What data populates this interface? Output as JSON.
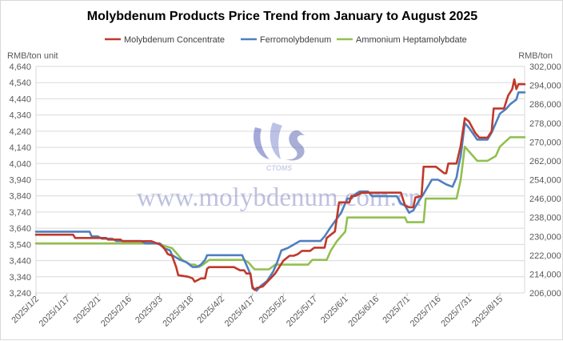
{
  "chart_data": {
    "type": "line",
    "title": "Molybdenum Products Price Trend from January to August 2025",
    "left_unit": "RMB/ton unit",
    "right_unit": "RMB/ton",
    "x_tick_labels": [
      "2025/1/2",
      "2025/1/17",
      "2025/2/1",
      "2025/2/16",
      "2025/3/3",
      "2025/3/18",
      "2025/4/2",
      "2025/4/17",
      "2025/5/2",
      "2025/5/17",
      "2025/6/1",
      "2025/6/16",
      "2025/7/1",
      "2025/7/16",
      "2025/7/31",
      "2025/8/15"
    ],
    "x_range": [
      "2025/1/2",
      "2025/8/27"
    ],
    "left_axis": {
      "ticks": [
        3240,
        3340,
        3440,
        3540,
        3640,
        3740,
        3840,
        3940,
        4040,
        4140,
        4240,
        4340,
        4440,
        4540,
        4640
      ],
      "tick_labels": [
        "3,240",
        "3,340",
        "3,440",
        "3,540",
        "3,640",
        "3,740",
        "3,840",
        "3,940",
        "4,040",
        "4,140",
        "4,240",
        "4,340",
        "4,440",
        "4,540",
        "4,640"
      ],
      "range": [
        3240,
        4640
      ]
    },
    "right_axis": {
      "ticks": [
        206000,
        214000,
        222000,
        230000,
        238000,
        246000,
        254000,
        262000,
        270000,
        278000,
        286000,
        294000,
        302000
      ],
      "tick_labels": [
        "206,000",
        "214,000",
        "222,000",
        "230,000",
        "238,000",
        "246,000",
        "254,000",
        "262,000",
        "270,000",
        "278,000",
        "286,000",
        "294,000",
        "302,000"
      ],
      "range": [
        206000,
        302000
      ]
    },
    "grid": "horizontal",
    "legend_position": "top",
    "series": [
      {
        "name": "Molybdenum Concentrate",
        "axis": "left",
        "color": "#c0392b",
        "points": [
          [
            "2025/1/2",
            3600
          ],
          [
            "2025/1/20",
            3600
          ],
          [
            "2025/1/21",
            3580
          ],
          [
            "2025/2/5",
            3580
          ],
          [
            "2025/2/6",
            3570
          ],
          [
            "2025/2/12",
            3570
          ],
          [
            "2025/2/13",
            3560
          ],
          [
            "2025/2/27",
            3560
          ],
          [
            "2025/3/3",
            3540
          ],
          [
            "2025/3/5",
            3520
          ],
          [
            "2025/3/7",
            3480
          ],
          [
            "2025/3/9",
            3470
          ],
          [
            "2025/3/11",
            3400
          ],
          [
            "2025/3/12",
            3350
          ],
          [
            "2025/3/17",
            3340
          ],
          [
            "2025/3/19",
            3330
          ],
          [
            "2025/3/20",
            3310
          ],
          [
            "2025/3/23",
            3330
          ],
          [
            "2025/3/25",
            3330
          ],
          [
            "2025/3/26",
            3390
          ],
          [
            "2025/3/27",
            3400
          ],
          [
            "2025/4/8",
            3400
          ],
          [
            "2025/4/11",
            3380
          ],
          [
            "2025/4/13",
            3380
          ],
          [
            "2025/4/14",
            3360
          ],
          [
            "2025/4/16",
            3360
          ],
          [
            "2025/4/17",
            3280
          ],
          [
            "2025/4/18",
            3260
          ],
          [
            "2025/4/19",
            3270
          ],
          [
            "2025/4/22",
            3280
          ],
          [
            "2025/4/25",
            3320
          ],
          [
            "2025/4/28",
            3360
          ],
          [
            "2025/4/30",
            3400
          ],
          [
            "2025/5/2",
            3440
          ],
          [
            "2025/5/5",
            3470
          ],
          [
            "2025/5/7",
            3470
          ],
          [
            "2025/5/9",
            3480
          ],
          [
            "2025/5/11",
            3500
          ],
          [
            "2025/5/15",
            3500
          ],
          [
            "2025/5/17",
            3520
          ],
          [
            "2025/5/22",
            3520
          ],
          [
            "2025/5/23",
            3580
          ],
          [
            "2025/5/25",
            3600
          ],
          [
            "2025/5/27",
            3620
          ],
          [
            "2025/5/29",
            3800
          ],
          [
            "2025/6/3",
            3800
          ],
          [
            "2025/6/4",
            3840
          ],
          [
            "2025/6/6",
            3840
          ],
          [
            "2025/6/9",
            3860
          ],
          [
            "2025/6/28",
            3860
          ],
          [
            "2025/6/30",
            3780
          ],
          [
            "2025/7/2",
            3770
          ],
          [
            "2025/7/4",
            3770
          ],
          [
            "2025/7/5",
            3830
          ],
          [
            "2025/7/8",
            3840
          ],
          [
            "2025/7/9",
            4020
          ],
          [
            "2025/7/15",
            4020
          ],
          [
            "2025/7/17",
            4000
          ],
          [
            "2025/7/19",
            3980
          ],
          [
            "2025/7/20",
            3980
          ],
          [
            "2025/7/21",
            4040
          ],
          [
            "2025/7/25",
            4040
          ],
          [
            "2025/7/27",
            4150
          ],
          [
            "2025/7/29",
            4320
          ],
          [
            "2025/7/31",
            4300
          ],
          [
            "2025/8/3",
            4230
          ],
          [
            "2025/8/5",
            4200
          ],
          [
            "2025/8/9",
            4200
          ],
          [
            "2025/8/11",
            4240
          ],
          [
            "2025/8/12",
            4380
          ],
          [
            "2025/8/17",
            4380
          ],
          [
            "2025/8/19",
            4460
          ],
          [
            "2025/8/21",
            4500
          ],
          [
            "2025/8/22",
            4560
          ],
          [
            "2025/8/23",
            4500
          ],
          [
            "2025/8/24",
            4530
          ],
          [
            "2025/8/27",
            4530
          ]
        ]
      },
      {
        "name": "Ferromolybdenum",
        "axis": "right",
        "color": "#4f7fbf",
        "points": [
          [
            "2025/1/2",
            232000
          ],
          [
            "2025/1/28",
            232000
          ],
          [
            "2025/1/29",
            230000
          ],
          [
            "2025/2/1",
            230000
          ],
          [
            "2025/2/3",
            229000
          ],
          [
            "2025/2/8",
            229000
          ],
          [
            "2025/2/10",
            228000
          ],
          [
            "2025/2/22",
            228000
          ],
          [
            "2025/2/24",
            227000
          ],
          [
            "2025/3/3",
            227000
          ],
          [
            "2025/3/5",
            225000
          ],
          [
            "2025/3/8",
            224000
          ],
          [
            "2025/3/9",
            222000
          ],
          [
            "2025/3/13",
            220000
          ],
          [
            "2025/3/16",
            219000
          ],
          [
            "2025/3/19",
            217000
          ],
          [
            "2025/3/21",
            217000
          ],
          [
            "2025/3/23",
            218000
          ],
          [
            "2025/3/25",
            220000
          ],
          [
            "2025/3/26",
            222000
          ],
          [
            "2025/4/12",
            222000
          ],
          [
            "2025/4/14",
            218000
          ],
          [
            "2025/4/16",
            214000
          ],
          [
            "2025/4/17",
            208000
          ],
          [
            "2025/4/19",
            207000
          ],
          [
            "2025/4/21",
            209000
          ],
          [
            "2025/4/24",
            211000
          ],
          [
            "2025/4/27",
            215000
          ],
          [
            "2025/4/29",
            219000
          ],
          [
            "2025/5/1",
            224000
          ],
          [
            "2025/5/4",
            225000
          ],
          [
            "2025/5/6",
            226000
          ],
          [
            "2025/5/8",
            227000
          ],
          [
            "2025/5/10",
            228000
          ],
          [
            "2025/5/20",
            228000
          ],
          [
            "2025/5/22",
            230000
          ],
          [
            "2025/5/25",
            234000
          ],
          [
            "2025/5/30",
            240000
          ],
          [
            "2025/6/2",
            246000
          ],
          [
            "2025/6/4",
            246000
          ],
          [
            "2025/6/6",
            248000
          ],
          [
            "2025/6/8",
            249000
          ],
          [
            "2025/6/12",
            249000
          ],
          [
            "2025/6/14",
            247000
          ],
          [
            "2025/6/26",
            247000
          ],
          [
            "2025/6/28",
            244000
          ],
          [
            "2025/6/30",
            243000
          ],
          [
            "2025/7/2",
            240000
          ],
          [
            "2025/7/4",
            241000
          ],
          [
            "2025/7/6",
            244000
          ],
          [
            "2025/7/9",
            248000
          ],
          [
            "2025/7/13",
            254000
          ],
          [
            "2025/7/16",
            254000
          ],
          [
            "2025/7/20",
            252000
          ],
          [
            "2025/7/23",
            251000
          ],
          [
            "2025/7/25",
            255000
          ],
          [
            "2025/7/26",
            260000
          ],
          [
            "2025/7/27",
            264000
          ],
          [
            "2025/7/29",
            278000
          ],
          [
            "2025/7/31",
            276000
          ],
          [
            "2025/8/4",
            271000
          ],
          [
            "2025/8/9",
            271000
          ],
          [
            "2025/8/11",
            274000
          ],
          [
            "2025/8/15",
            282000
          ],
          [
            "2025/8/18",
            284000
          ],
          [
            "2025/8/20",
            286000
          ],
          [
            "2025/8/23",
            288000
          ],
          [
            "2025/8/24",
            291000
          ],
          [
            "2025/8/27",
            291000
          ]
        ]
      },
      {
        "name": "Ammonium Heptamolybdate",
        "axis": "right",
        "color": "#92c050",
        "points": [
          [
            "2025/1/2",
            227000
          ],
          [
            "2025/3/3",
            227000
          ],
          [
            "2025/3/5",
            226000
          ],
          [
            "2025/3/9",
            225000
          ],
          [
            "2025/3/11",
            223000
          ],
          [
            "2025/3/14",
            220000
          ],
          [
            "2025/3/18",
            218000
          ],
          [
            "2025/3/20",
            218000
          ],
          [
            "2025/3/22",
            217000
          ],
          [
            "2025/3/24",
            218000
          ],
          [
            "2025/3/27",
            220000
          ],
          [
            "2025/4/13",
            220000
          ],
          [
            "2025/4/15",
            219000
          ],
          [
            "2025/4/18",
            216000
          ],
          [
            "2025/4/25",
            216000
          ],
          [
            "2025/4/28",
            218000
          ],
          [
            "2025/5/14",
            218000
          ],
          [
            "2025/5/16",
            220000
          ],
          [
            "2025/5/23",
            220000
          ],
          [
            "2025/5/25",
            224000
          ],
          [
            "2025/5/28",
            228000
          ],
          [
            "2025/6/1",
            232000
          ],
          [
            "2025/6/2",
            238000
          ],
          [
            "2025/6/30",
            238000
          ],
          [
            "2025/7/1",
            236000
          ],
          [
            "2025/7/9",
            236000
          ],
          [
            "2025/7/10",
            246000
          ],
          [
            "2025/7/25",
            246000
          ],
          [
            "2025/7/27",
            254000
          ],
          [
            "2025/7/29",
            268000
          ],
          [
            "2025/8/1",
            265000
          ],
          [
            "2025/8/4",
            262000
          ],
          [
            "2025/8/9",
            262000
          ],
          [
            "2025/8/13",
            264000
          ],
          [
            "2025/8/15",
            268000
          ],
          [
            "2025/8/20",
            272000
          ],
          [
            "2025/8/27",
            272000
          ]
        ]
      }
    ],
    "watermark_text": "www.molybdenum.com.cn",
    "logo_text": "CTOMS"
  }
}
